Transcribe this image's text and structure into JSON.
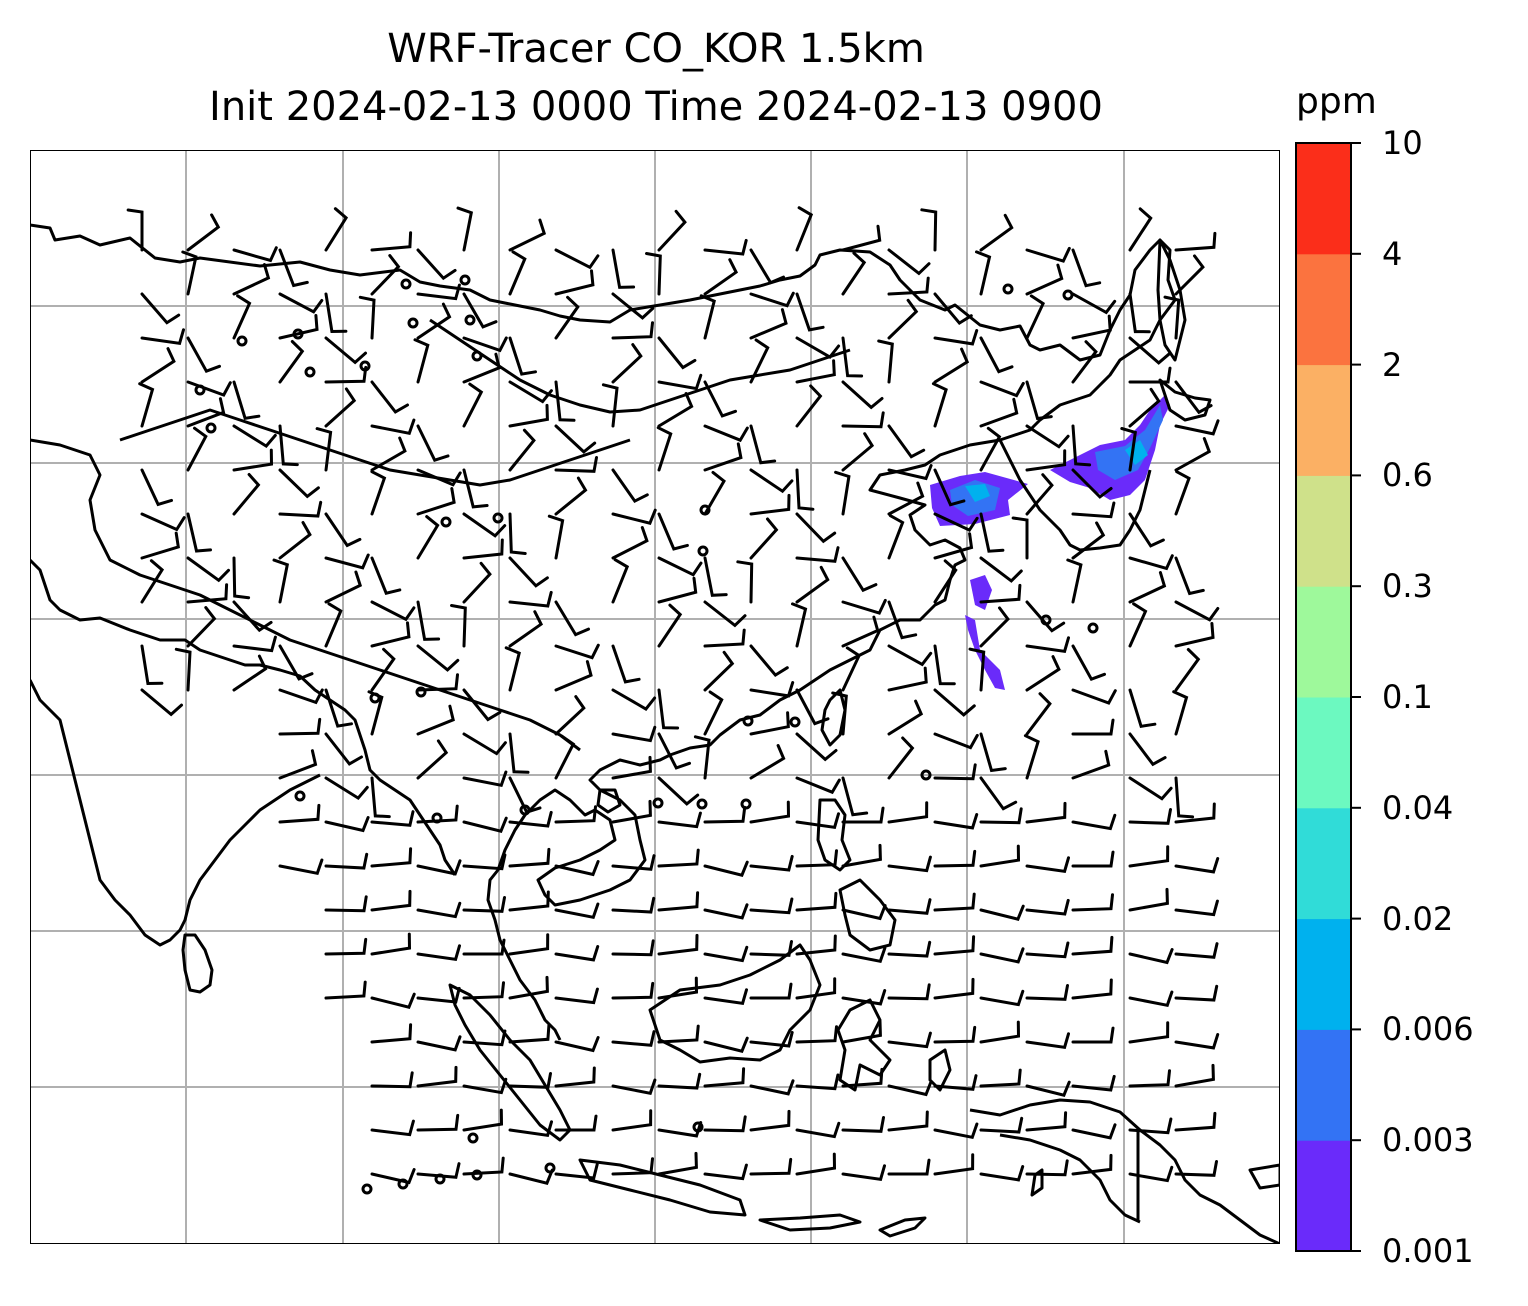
{
  "header": {
    "title_line1": "WRF-Tracer CO_KOR 1.5km",
    "title_line2": "Init 2024-02-13 0000 Time 2024-02-13 0900"
  },
  "map": {
    "background": "#ffffff",
    "coastline_color": "#000000",
    "gridline_color": "#b0b0b0",
    "wind_barb_color": "#000000",
    "plume_colors": [
      "#6a2bfa",
      "#3373f4",
      "#00b1ee"
    ]
  },
  "colorbar": {
    "unit": "ppm",
    "ticks": [
      "10",
      "4",
      "2",
      "0.6",
      "0.3",
      "0.1",
      "0.04",
      "0.02",
      "0.006",
      "0.003",
      "0.001"
    ],
    "colors": [
      "#6a2bfa",
      "#3373f4",
      "#00b1ee",
      "#30dcd8",
      "#6cf9c0",
      "#9ef99b",
      "#cfe18a",
      "#fbb064",
      "#fb733f",
      "#fb2e1a"
    ]
  }
}
